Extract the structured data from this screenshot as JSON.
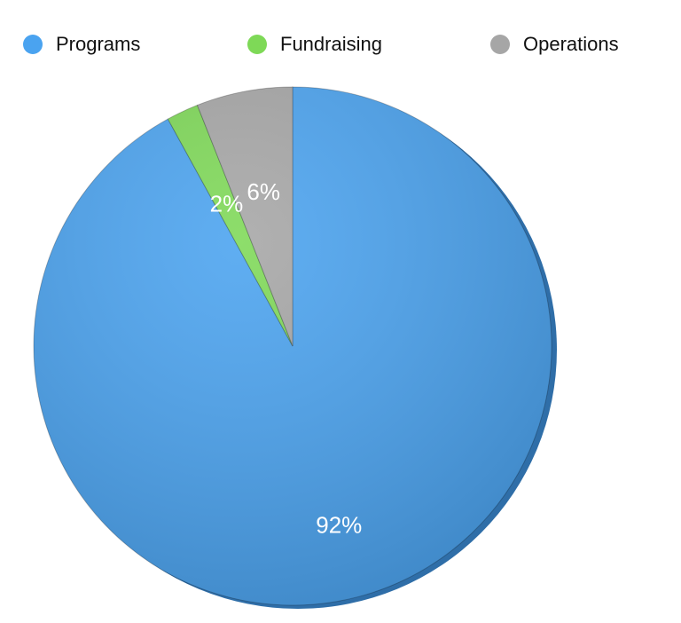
{
  "chart_data": {
    "type": "pie",
    "categories": [
      "Programs",
      "Fundraising",
      "Operations"
    ],
    "values": [
      92,
      2,
      6
    ],
    "value_labels": [
      "92%",
      "2%",
      "6%"
    ],
    "colors": [
      "#4aa3f0",
      "#7ed957",
      "#a6a6a6"
    ],
    "legend": "top"
  }
}
